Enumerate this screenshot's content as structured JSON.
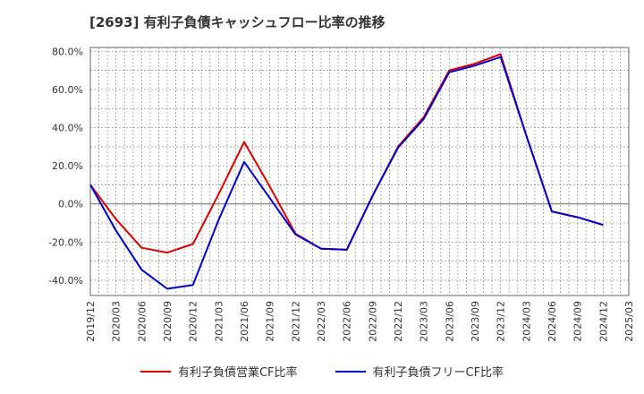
{
  "chart_data": {
    "type": "line",
    "title": "[2693]  有利子負債キャッシュフロー比率の推移",
    "xlabel": "",
    "ylabel": "",
    "ylim": [
      -48,
      82
    ],
    "yticks": [
      80,
      60,
      40,
      20,
      0,
      -20,
      -40
    ],
    "ytick_labels": [
      "80.0%",
      "60.0%",
      "40.0%",
      "20.0%",
      "0.0%",
      "-20.0%",
      "-40.0%"
    ],
    "x": [
      "2019/12",
      "2020/03",
      "2020/06",
      "2020/09",
      "2020/12",
      "2021/03",
      "2021/06",
      "2021/09",
      "2021/12",
      "2022/03",
      "2022/06",
      "2022/09",
      "2022/12",
      "2023/03",
      "2023/06",
      "2023/09",
      "2023/12",
      "2024/03",
      "2024/06",
      "2024/09",
      "2024/12",
      "2025/03"
    ],
    "grid": true,
    "legend_position": "bottom",
    "series": [
      {
        "name": "有利子負債営業CF比率",
        "color": "#dd0000",
        "values": [
          10,
          -8,
          -23,
          -25.5,
          -21,
          5,
          32.5,
          9,
          -15.5,
          -23.5,
          -24,
          4,
          30,
          45.5,
          70,
          73.5,
          78.5,
          36,
          -4,
          -7,
          -11,
          null
        ]
      },
      {
        "name": "有利子負債フリーCF比率",
        "color": "#0000cc",
        "values": [
          10,
          -14,
          -34.5,
          -44.5,
          -42.5,
          -8.5,
          22,
          3,
          -16,
          -23.5,
          -24,
          4,
          29.5,
          44.5,
          69,
          72.5,
          77,
          36,
          -4,
          -7,
          -11,
          null
        ]
      }
    ]
  }
}
